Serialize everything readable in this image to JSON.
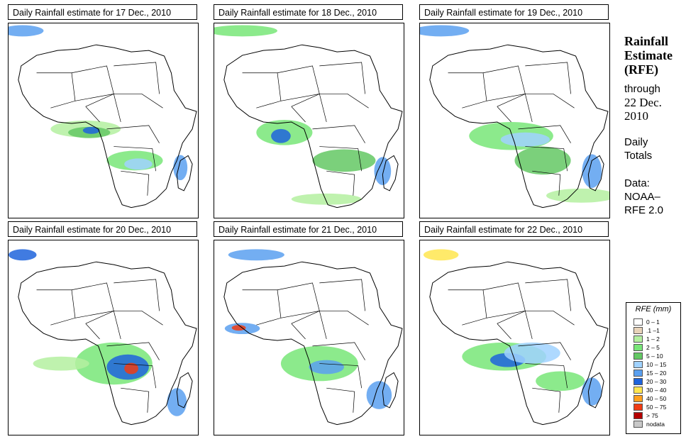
{
  "panels": [
    {
      "title": "Daily Rainfall estimate for  17 Dec., 2010"
    },
    {
      "title": "Daily Rainfall estimate for  18 Dec., 2010"
    },
    {
      "title": "Daily Rainfall estimate for  19 Dec., 2010"
    },
    {
      "title": "Daily Rainfall estimate for  20 Dec., 2010"
    },
    {
      "title": "Daily Rainfall estimate for  21 Dec., 2010"
    },
    {
      "title": "Daily Rainfall estimate for  22 Dec., 2010"
    }
  ],
  "side": {
    "title_line1": "Rainfall",
    "title_line2": "Estimate",
    "title_line3": "(RFE)",
    "through": "through",
    "date_line1": "22 Dec.",
    "date_line2": "2010",
    "daily_line1": "Daily",
    "daily_line2": "Totals",
    "data_line1": "Data:",
    "data_line2": "NOAA–",
    "data_line3": "RFE 2.0"
  },
  "legend": {
    "title": "RFE (mm)",
    "items": [
      {
        "label": "0 – 1",
        "color": "#ffffff"
      },
      {
        "label": ".1 –1",
        "color": "#e8d3b9"
      },
      {
        "label": "1 – 2",
        "color": "#b4f0a0"
      },
      {
        "label": "2 – 5",
        "color": "#78e678"
      },
      {
        "label": "5 – 10",
        "color": "#64c864"
      },
      {
        "label": "10 – 15",
        "color": "#a0d2ff"
      },
      {
        "label": "15 – 20",
        "color": "#5aa0f0"
      },
      {
        "label": "20 – 30",
        "color": "#1e64dc"
      },
      {
        "label": "30 – 40",
        "color": "#ffe650"
      },
      {
        "label": "40 – 50",
        "color": "#ffa01e"
      },
      {
        "label": "50 – 75",
        "color": "#f03c14"
      },
      {
        "label": "> 75",
        "color": "#b40000"
      },
      {
        "label": "nodata",
        "color": "#c8c8c8"
      }
    ]
  }
}
